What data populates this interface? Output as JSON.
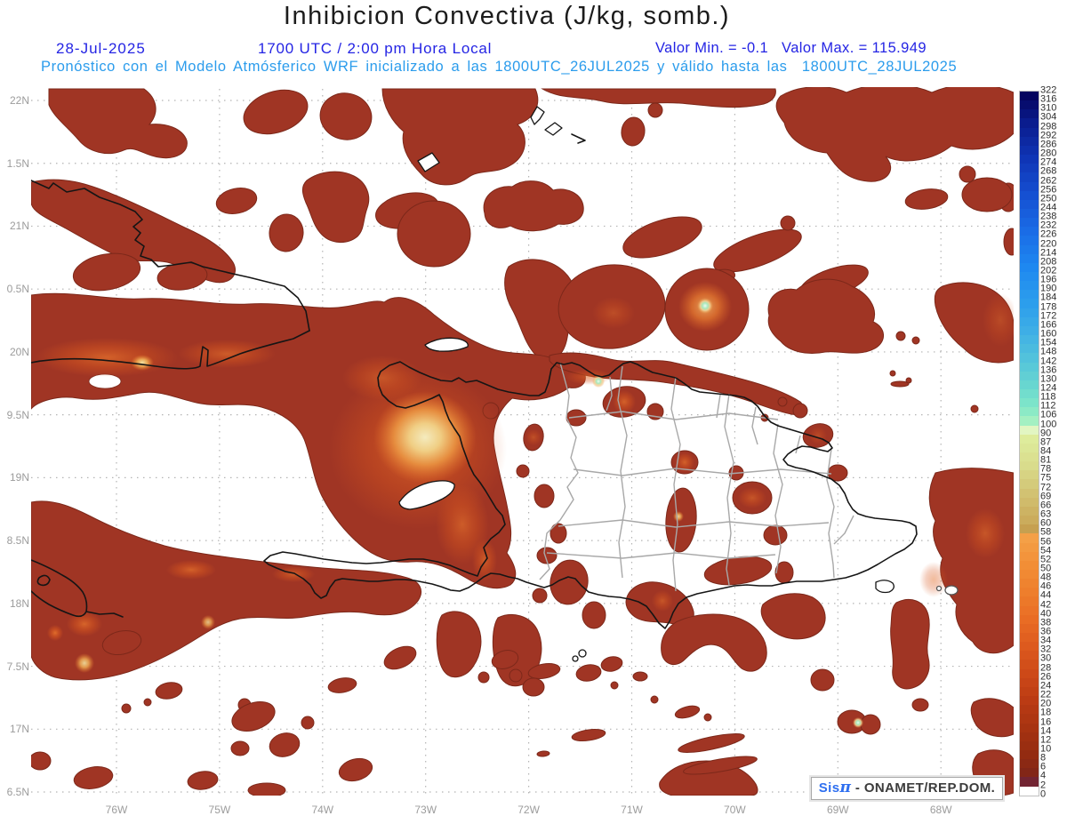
{
  "header": {
    "title": "Inhibicion Convectiva (J/kg, somb.)",
    "date": "28-Jul-2025",
    "time": "1700 UTC / 2:00 pm Hora Local",
    "values": "Valor Min. = -0.1   Valor Max. = 115.949",
    "subtitle": "Pronóstico con el Modelo Atmósferico WRF inicializado a las 1800UTC_26JUL2025 y válido hasta las  1800UTC_28JUL2025"
  },
  "axes": {
    "lat": [
      "22N",
      "1.5N",
      "21N",
      "0.5N",
      "20N",
      "9.5N",
      "19N",
      "8.5N",
      "18N",
      "7.5N",
      "17N",
      "6.5N"
    ],
    "lon": [
      "76W",
      "75W",
      "74W",
      "73W",
      "72W",
      "71W",
      "70W",
      "69W",
      "68W"
    ]
  },
  "colorbar": {
    "labels": [
      322,
      316,
      310,
      304,
      298,
      292,
      286,
      280,
      274,
      268,
      262,
      256,
      250,
      244,
      238,
      232,
      226,
      220,
      214,
      208,
      202,
      196,
      190,
      184,
      178,
      172,
      166,
      160,
      154,
      148,
      142,
      136,
      130,
      124,
      118,
      112,
      106,
      100,
      90,
      87,
      84,
      81,
      78,
      75,
      72,
      69,
      66,
      63,
      60,
      58,
      56,
      54,
      52,
      50,
      48,
      46,
      44,
      42,
      40,
      38,
      36,
      34,
      32,
      30,
      28,
      26,
      24,
      22,
      20,
      18,
      16,
      14,
      12,
      10,
      8,
      6,
      4,
      2,
      0
    ],
    "stops": [
      [
        0,
        "#05055F"
      ],
      [
        3,
        "#0A1C8E"
      ],
      [
        7,
        "#0F35B6"
      ],
      [
        11,
        "#1550D2"
      ],
      [
        15,
        "#1A6CE6"
      ],
      [
        19,
        "#1E88F0"
      ],
      [
        23,
        "#2C9EEC"
      ],
      [
        26,
        "#3EAEE6"
      ],
      [
        29,
        "#52C2DC"
      ],
      [
        32,
        "#68D6D0"
      ],
      [
        34,
        "#7CE4CA"
      ],
      [
        35,
        "#8CEAC6"
      ],
      [
        36,
        "#A4F0C2"
      ],
      [
        37,
        "#E2F6C2"
      ],
      [
        38,
        "#DEEC9C"
      ],
      [
        41,
        "#D9DC8C"
      ],
      [
        44,
        "#D2C272"
      ],
      [
        47,
        "#CBAC5C"
      ],
      [
        48,
        "#C6A050"
      ],
      [
        49,
        "#F4A047"
      ],
      [
        52,
        "#F28E36"
      ],
      [
        55,
        "#EE7E2C"
      ],
      [
        58,
        "#E96C24"
      ],
      [
        61,
        "#DD5A1E"
      ],
      [
        64,
        "#CD4918"
      ],
      [
        67,
        "#BB3B14"
      ],
      [
        70,
        "#A73311"
      ],
      [
        73,
        "#932B11"
      ],
      [
        75,
        "#822617"
      ],
      [
        76,
        "#722432"
      ],
      [
        77,
        "#FFFFFF"
      ]
    ]
  },
  "branding": {
    "sis": "Sis",
    "pi": "π",
    "org": " - ONAMET/REP.DOM."
  },
  "colors": {
    "header_blue": "#2424E4",
    "subtitle_cyan": "#2B9CEC",
    "axis_gray": "#9C9C9C",
    "title_color": "#1C1C1C",
    "field_red": "#A03524",
    "field_rim": "#7C281A",
    "coastline_black": "#151515",
    "province_gray": "#A8A8A8"
  },
  "chart_data": {
    "type": "heatmap",
    "title": "Inhibicion Convectiva (J/kg, somb.)",
    "units": "J/kg",
    "date": "28-Jul-2025",
    "valid_time": "1700 UTC / 2:00 pm Hora Local",
    "value_min": -0.1,
    "value_max": 115.949,
    "model_info": "Modelo Atmósferico WRF inicializado a las 1800UTC_26JUL2025, válido hasta las 1800UTC_28JUL2025",
    "x_ticks": [
      "76W",
      "75W",
      "74W",
      "73W",
      "72W",
      "71W",
      "70W",
      "69W",
      "68W"
    ],
    "y_ticks": [
      "22N",
      "1.5N",
      "21N",
      "0.5N",
      "20N",
      "9.5N",
      "19N",
      "8.5N",
      "18N",
      "7.5N",
      "17N",
      "6.5N"
    ],
    "colorbar_levels": [
      322,
      316,
      310,
      304,
      298,
      292,
      286,
      280,
      274,
      268,
      262,
      256,
      250,
      244,
      238,
      232,
      226,
      220,
      214,
      208,
      202,
      196,
      190,
      184,
      178,
      172,
      166,
      160,
      154,
      148,
      142,
      136,
      130,
      124,
      118,
      112,
      106,
      100,
      90,
      87,
      84,
      81,
      78,
      75,
      72,
      69,
      66,
      63,
      60,
      58,
      56,
      54,
      52,
      50,
      48,
      46,
      44,
      42,
      40,
      38,
      36,
      34,
      32,
      30,
      28,
      26,
      24,
      22,
      20,
      18,
      16,
      14,
      12,
      10,
      8,
      6,
      4,
      2,
      0
    ],
    "legend_position": "right",
    "grid": true
  }
}
